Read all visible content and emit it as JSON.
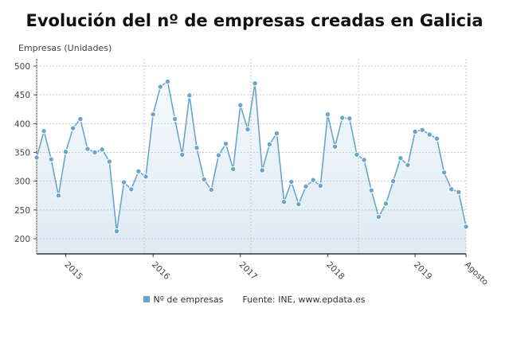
{
  "chart_data": {
    "type": "line",
    "title": "Evolución del nº de empresas creadas en Galicia",
    "ylabel": "Empresas (Unidades)",
    "xlabel": "",
    "ylim": [
      175,
      510
    ],
    "yticks": [
      200,
      250,
      300,
      350,
      400,
      450,
      500
    ],
    "xtick_labels": [
      "2015",
      "2016",
      "2017",
      "2018",
      "2019",
      "Agosto"
    ],
    "grid": true,
    "legend_position": "bottom",
    "series": [
      {
        "name": "Nº de empresas",
        "color": "#6aa6cc",
        "x": [
          "2014-09",
          "2014-10",
          "2014-11",
          "2014-12",
          "2015-01",
          "2015-02",
          "2015-03",
          "2015-04",
          "2015-05",
          "2015-06",
          "2015-07",
          "2015-08",
          "2015-09",
          "2015-10",
          "2015-11",
          "2015-12",
          "2016-01",
          "2016-02",
          "2016-03",
          "2016-04",
          "2016-05",
          "2016-06",
          "2016-07",
          "2016-08",
          "2016-09",
          "2016-10",
          "2016-11",
          "2016-12",
          "2017-01",
          "2017-02",
          "2017-03",
          "2017-04",
          "2017-05",
          "2017-06",
          "2017-07",
          "2017-08",
          "2017-09",
          "2017-10",
          "2017-11",
          "2017-12",
          "2018-01",
          "2018-02",
          "2018-03",
          "2018-04",
          "2018-05",
          "2018-06",
          "2018-07",
          "2018-08",
          "2018-09",
          "2018-10",
          "2018-11",
          "2018-12",
          "2019-01",
          "2019-02",
          "2019-03",
          "2019-04",
          "2019-05",
          "2019-06",
          "2019-07",
          "2019-08"
        ],
        "values": [
          341,
          387,
          338,
          275,
          351,
          392,
          408,
          356,
          350,
          355,
          334,
          213,
          298,
          286,
          317,
          308,
          416,
          464,
          473,
          408,
          346,
          449,
          358,
          303,
          285,
          345,
          365,
          321,
          432,
          390,
          470,
          319,
          364,
          383,
          264,
          299,
          260,
          291,
          302,
          292,
          416,
          360,
          410,
          409,
          346,
          337,
          284,
          238,
          261,
          300,
          340,
          328,
          386,
          389,
          381,
          374,
          315,
          286,
          281,
          221
        ]
      }
    ]
  },
  "legend": {
    "series_label": "Nº de empresas",
    "source": "Fuente: INE, www.epdata.es"
  }
}
